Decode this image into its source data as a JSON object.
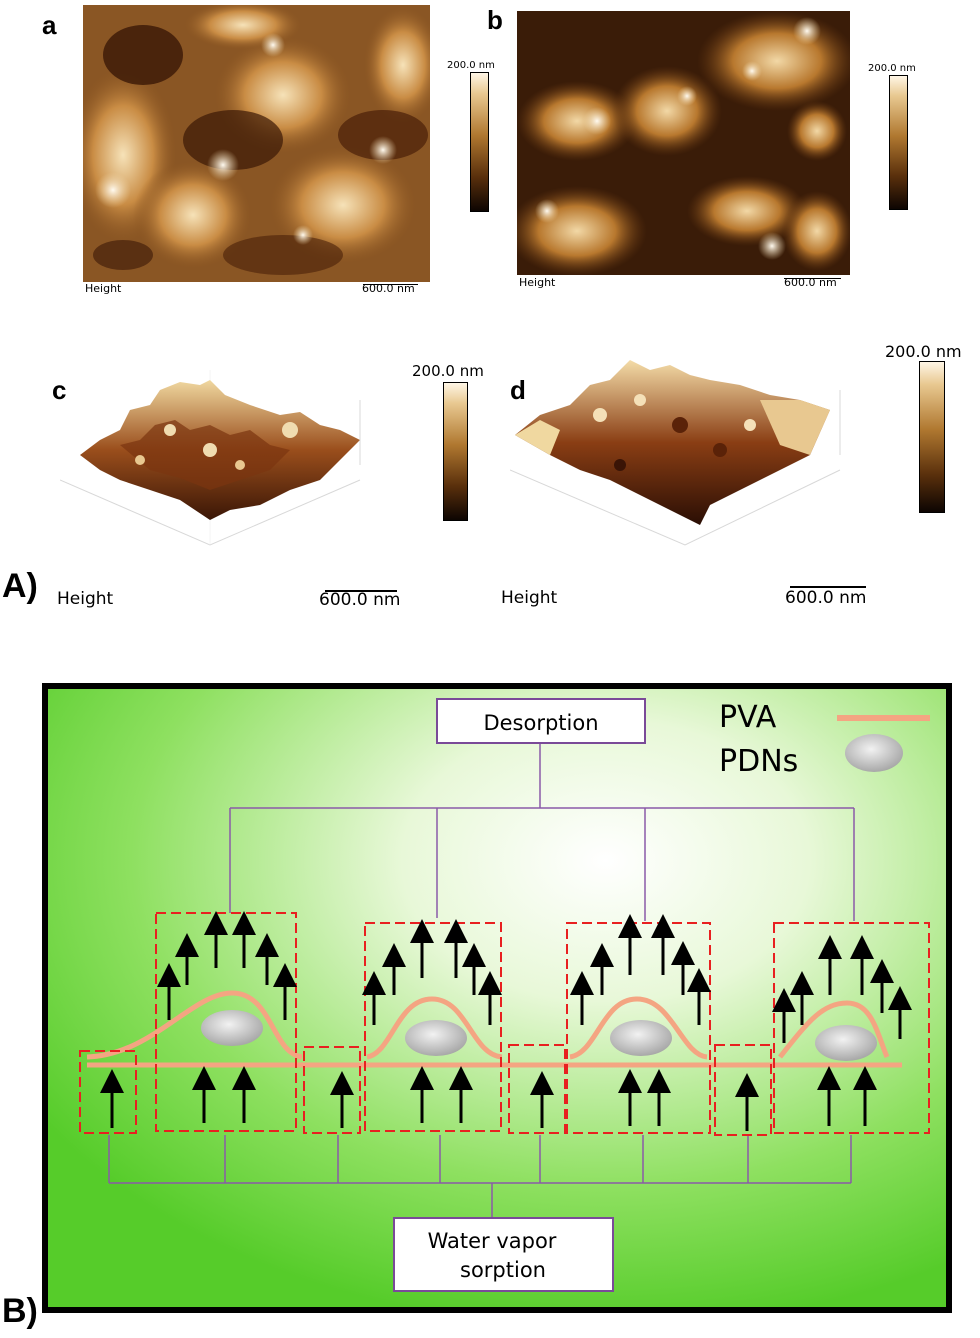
{
  "panel_A": {
    "label": "A)",
    "a": {
      "letter": "a",
      "height_label": "Height",
      "scale_label": "600.0 nm",
      "colorbar_label": "200.0 nm"
    },
    "b": {
      "letter": "b",
      "height_label": "Height",
      "scale_label": "600.0 nm",
      "colorbar_label": "200.0 nm"
    },
    "c": {
      "letter": "c",
      "height_label": "Height",
      "scale_label": "600.0 nm",
      "colorbar_label": "200.0 nm"
    },
    "d": {
      "letter": "d",
      "height_label": "Height",
      "scale_label": "600.0 nm",
      "colorbar_label": "200.0 nm"
    }
  },
  "panel_B": {
    "label": "B)",
    "desorption": "Desorption",
    "sorption_line1": "Water vapor",
    "sorption_line2": "sorption",
    "legend_pva": "PVA",
    "legend_pdns": "PDNs",
    "colors": {
      "pva": "#f4a582",
      "box_dash": "#e82020",
      "connector": "#8a5aa8",
      "bg_light": "#ffffff",
      "bg_green": "#62d430"
    }
  }
}
